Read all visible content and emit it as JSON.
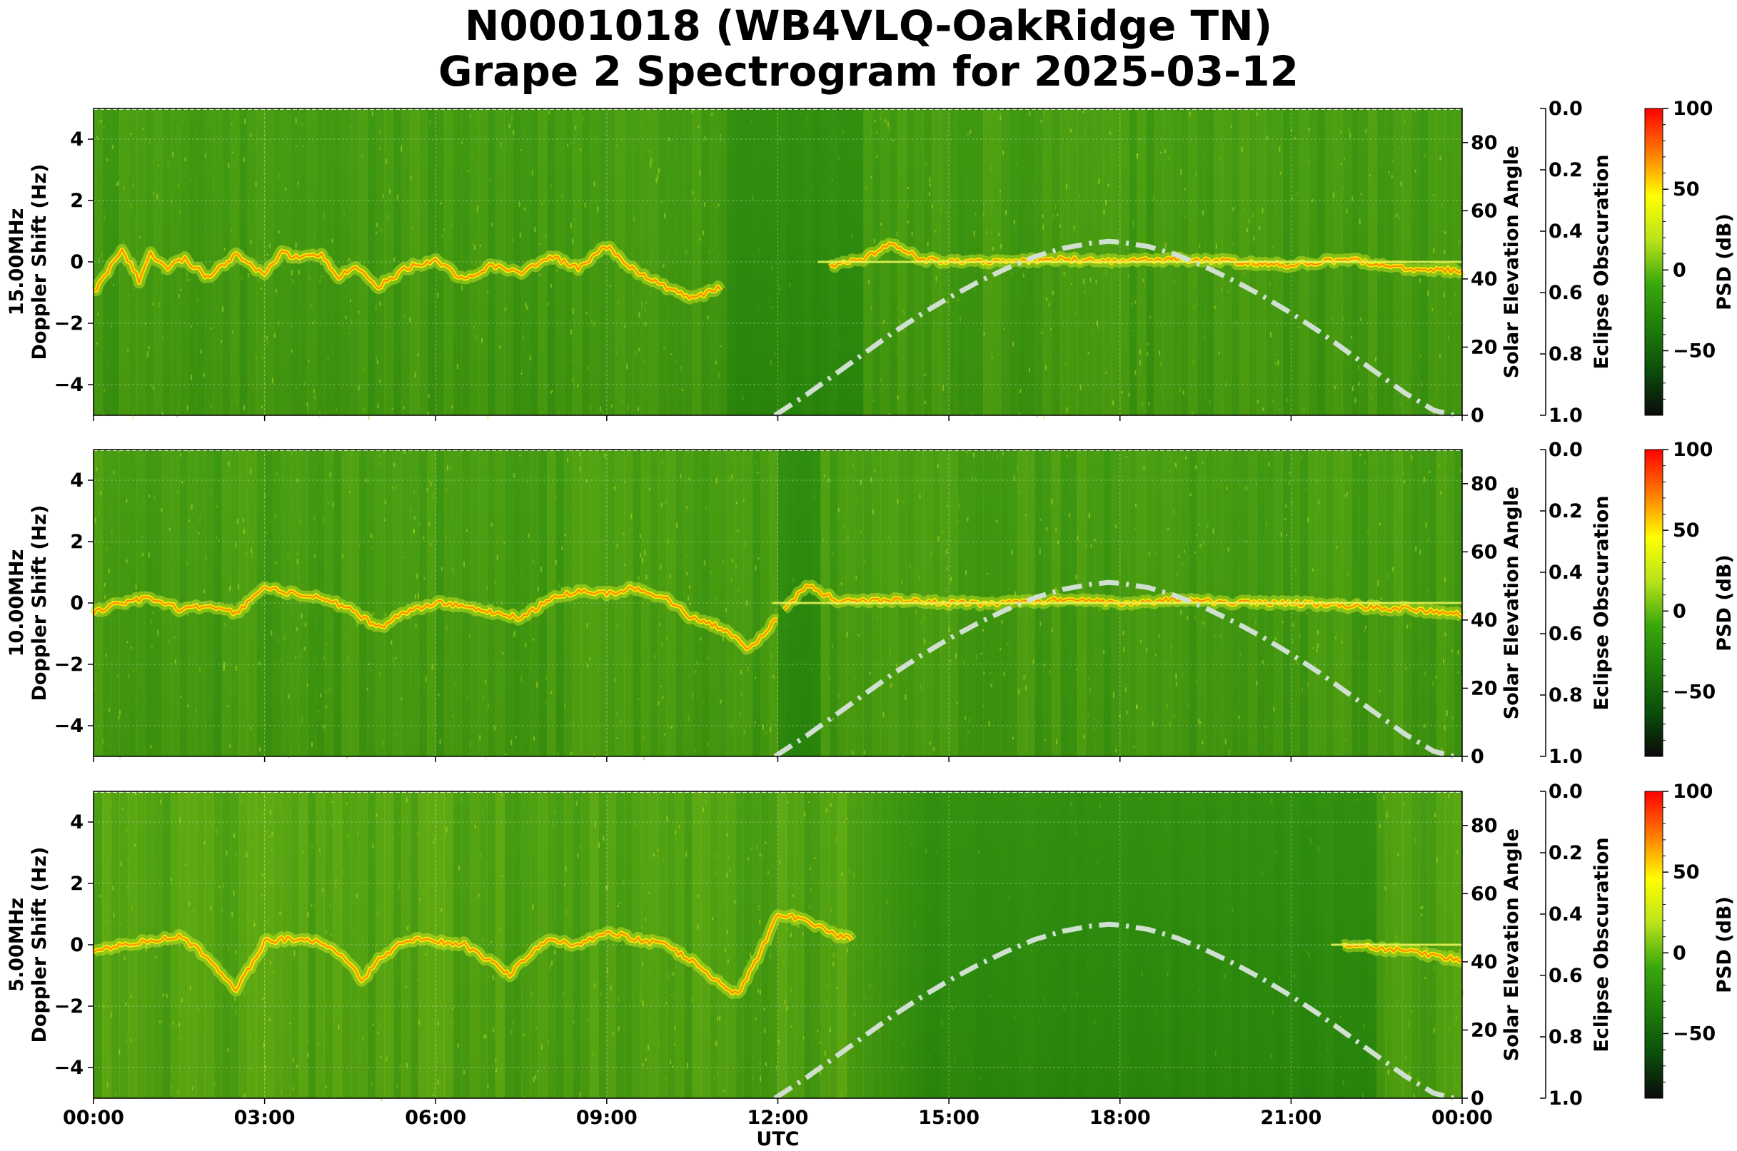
{
  "chart_data": {
    "type": "heatmap",
    "title_line1": "N0001018 (WB4VLQ-OakRidge TN)",
    "title_line2": "Grape 2 Spectrogram for 2025-03-12",
    "xlabel": "UTC",
    "x_ticks": [
      "00:00",
      "03:00",
      "06:00",
      "09:00",
      "12:00",
      "15:00",
      "18:00",
      "21:00",
      "00:00"
    ],
    "x_range_hours": [
      0,
      24
    ],
    "y_range_hz": [
      -5,
      5
    ],
    "y_ticks": [
      "4",
      "2",
      "0",
      "−2",
      "−4"
    ],
    "y_tick_values": [
      4,
      2,
      0,
      -2,
      -4
    ],
    "y_label_suffix": "Doppler Shift (Hz)",
    "solar_axis": {
      "label": "Solar Elevation Angle",
      "range": [
        0,
        90
      ],
      "ticks": [
        "80",
        "60",
        "40",
        "20",
        "0"
      ],
      "tick_values": [
        80,
        60,
        40,
        20,
        0
      ]
    },
    "eclipse_axis": {
      "label": "Eclipse Obscuration",
      "range": [
        0,
        1
      ],
      "ticks": [
        "0.0",
        "0.2",
        "0.4",
        "0.6",
        "0.8",
        "1.0"
      ],
      "tick_values": [
        0,
        0.2,
        0.4,
        0.6,
        0.8,
        1.0
      ]
    },
    "colorbar": {
      "label": "PSD (dB)",
      "range": [
        -90,
        100
      ],
      "ticks": [
        "100",
        "50",
        "0",
        "−50"
      ],
      "tick_values": [
        100,
        50,
        0,
        -50
      ],
      "colors": [
        "#0a0a0a",
        "#0b4d0b",
        "#1f7d0a",
        "#3aa80c",
        "#b9e31b",
        "#ffff00",
        "#ff7a00",
        "#ff0000"
      ]
    },
    "solar_elevation_curve": {
      "x_hours": [
        11.95,
        12.5,
        13,
        13.5,
        14,
        14.5,
        15,
        15.5,
        16,
        16.5,
        17,
        17.5,
        17.8,
        18,
        18.5,
        19,
        19.5,
        20,
        20.5,
        21,
        21.5,
        22,
        22.5,
        23,
        23.5,
        23.85
      ],
      "elevation_deg": [
        0,
        6,
        12,
        18,
        24,
        29.5,
        34.5,
        39,
        43,
        46.5,
        49,
        50.5,
        51,
        50.8,
        49.5,
        47,
        43.5,
        39.5,
        35,
        30,
        24.5,
        18.5,
        12.5,
        6.5,
        1.5,
        0
      ],
      "color": "#d0e0d0",
      "style": "dash-dot"
    },
    "panels": [
      {
        "freq_label": "15.00MHz",
        "ridge_hours": [
          0,
          0.5,
          0.8,
          1.0,
          1.3,
          1.6,
          2.0,
          2.5,
          3.0,
          3.3,
          3.6,
          4.0,
          4.3,
          4.6,
          5.0,
          5.5,
          6.0,
          6.5,
          7.0,
          7.5,
          8.0,
          8.5,
          9.0,
          9.5,
          10.0,
          10.5,
          10.9,
          13.5,
          14.0,
          14.5,
          15.0,
          16.0,
          17.0,
          18.0,
          19.0,
          20.0,
          21.0,
          22.0,
          23.0,
          24.0
        ],
        "ridge_hz": [
          -1.0,
          0.4,
          -0.6,
          0.3,
          -0.2,
          0.1,
          -0.5,
          0.2,
          -0.4,
          0.3,
          0.1,
          0.2,
          -0.5,
          -0.1,
          -0.8,
          -0.2,
          0.1,
          -0.6,
          -0.1,
          -0.4,
          0.2,
          -0.2,
          0.5,
          -0.3,
          -0.8,
          -1.2,
          -0.9,
          0.1,
          0.6,
          0.1,
          0.0,
          0.0,
          0.1,
          0.0,
          0.1,
          0.0,
          -0.1,
          0.1,
          -0.2,
          -0.3
        ],
        "bright_until_hours": 11.0,
        "ridge_from_hours": 0.0,
        "bright_resume_hours": 13.5,
        "noise_level": 0.5
      },
      {
        "freq_label": "10.00MHz",
        "ridge_hours": [
          0,
          0.5,
          1.0,
          1.5,
          2.0,
          2.5,
          3.0,
          3.5,
          4.0,
          4.5,
          5.0,
          5.5,
          6.0,
          6.5,
          7.0,
          7.5,
          8.0,
          8.5,
          9.0,
          9.5,
          10.0,
          10.5,
          11.0,
          11.5,
          12.0,
          12.5,
          13.0,
          14.0,
          15.0,
          16.0,
          17.0,
          18.0,
          19.0,
          20.0,
          21.0,
          22.0,
          23.0,
          24.0
        ],
        "ridge_hz": [
          -0.3,
          0.0,
          0.2,
          -0.2,
          -0.1,
          -0.3,
          0.5,
          0.3,
          0.2,
          -0.2,
          -0.8,
          -0.3,
          0.0,
          -0.1,
          -0.3,
          -0.5,
          0.1,
          0.4,
          0.3,
          0.5,
          0.2,
          -0.5,
          -0.8,
          -1.5,
          -0.5,
          0.6,
          0.1,
          0.1,
          0.0,
          0.0,
          0.1,
          0.0,
          0.1,
          0.0,
          0.0,
          -0.1,
          -0.2,
          -0.4
        ],
        "bright_until_hours": 12.0,
        "ridge_from_hours": 0.0,
        "bright_resume_hours": 12.7,
        "noise_level": 0.55
      },
      {
        "freq_label": "5.00MHz",
        "ridge_hours": [
          0,
          0.5,
          1.0,
          1.5,
          2.0,
          2.5,
          3.0,
          3.5,
          4.0,
          4.5,
          4.7,
          5.0,
          5.5,
          6.0,
          6.5,
          7.0,
          7.3,
          7.6,
          8.0,
          8.5,
          9.0,
          9.5,
          10.0,
          10.5,
          11.0,
          11.3,
          11.6,
          12.0,
          12.5,
          13.0,
          14.0,
          15.0,
          16.0,
          17.0,
          18.0,
          19.0,
          20.0,
          21.0,
          22.0,
          23.0,
          24.0
        ],
        "ridge_hz": [
          -0.2,
          0.0,
          0.1,
          0.3,
          -0.4,
          -1.5,
          0.1,
          0.2,
          0.1,
          -0.6,
          -1.2,
          -0.5,
          0.2,
          0.1,
          0.0,
          -0.6,
          -1.0,
          -0.4,
          0.2,
          0.0,
          0.4,
          0.2,
          0.0,
          -0.5,
          -1.3,
          -1.6,
          -0.6,
          1.0,
          0.8,
          0.3,
          0.0,
          0.0,
          0.0,
          0.0,
          0.0,
          0.0,
          0.0,
          0.0,
          0.0,
          -0.2,
          -0.5
        ],
        "bright_until_hours": 13.3,
        "ridge_from_hours": 0.0,
        "bright_resume_hours": 22.5,
        "noise_level": 0.75
      }
    ]
  }
}
